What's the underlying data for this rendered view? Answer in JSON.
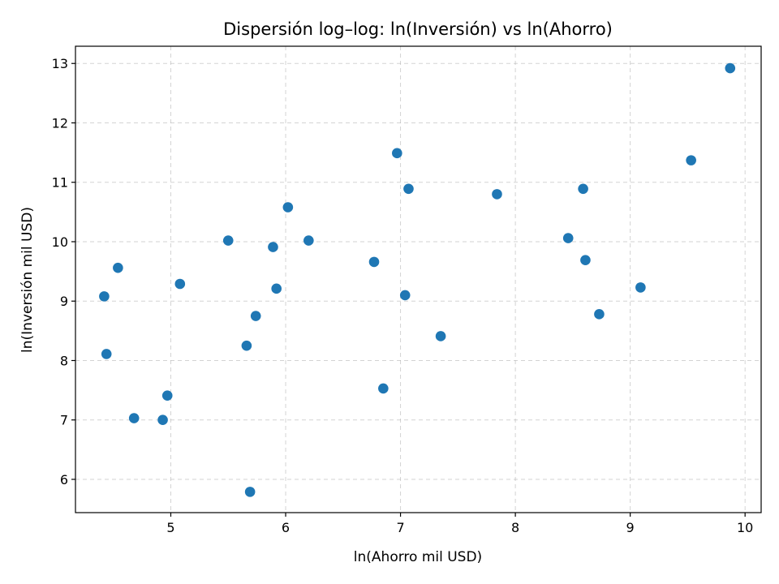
{
  "chart_data": {
    "type": "scatter",
    "title": "Dispersión log–log: ln(Inversión) vs ln(Ahorro)",
    "xlabel": "ln(Ahorro mil USD)",
    "ylabel": "ln(Inversión mil USD)",
    "xlim": [
      4.17,
      10.14
    ],
    "ylim": [
      5.44,
      13.29
    ],
    "xticks": [
      5,
      6,
      7,
      8,
      9,
      10
    ],
    "yticks": [
      6,
      7,
      8,
      9,
      10,
      11,
      12,
      13
    ],
    "grid": true,
    "point_color": "#1f77b4",
    "points": [
      {
        "x": 4.42,
        "y": 9.08
      },
      {
        "x": 4.44,
        "y": 8.11
      },
      {
        "x": 4.54,
        "y": 9.56
      },
      {
        "x": 4.68,
        "y": 7.03
      },
      {
        "x": 4.93,
        "y": 7.0
      },
      {
        "x": 4.97,
        "y": 7.41
      },
      {
        "x": 5.08,
        "y": 9.29
      },
      {
        "x": 5.5,
        "y": 10.02
      },
      {
        "x": 5.66,
        "y": 8.25
      },
      {
        "x": 5.69,
        "y": 5.79
      },
      {
        "x": 5.74,
        "y": 8.75
      },
      {
        "x": 5.89,
        "y": 9.91
      },
      {
        "x": 5.92,
        "y": 9.21
      },
      {
        "x": 6.02,
        "y": 10.58
      },
      {
        "x": 6.2,
        "y": 10.02
      },
      {
        "x": 6.77,
        "y": 9.66
      },
      {
        "x": 6.85,
        "y": 7.53
      },
      {
        "x": 6.97,
        "y": 11.49
      },
      {
        "x": 7.04,
        "y": 9.1
      },
      {
        "x": 7.07,
        "y": 10.89
      },
      {
        "x": 7.35,
        "y": 8.41
      },
      {
        "x": 7.84,
        "y": 10.8
      },
      {
        "x": 8.46,
        "y": 10.06
      },
      {
        "x": 8.59,
        "y": 10.89
      },
      {
        "x": 8.61,
        "y": 9.69
      },
      {
        "x": 8.73,
        "y": 8.78
      },
      {
        "x": 9.09,
        "y": 9.23
      },
      {
        "x": 9.53,
        "y": 11.37
      },
      {
        "x": 9.87,
        "y": 12.92
      }
    ]
  }
}
